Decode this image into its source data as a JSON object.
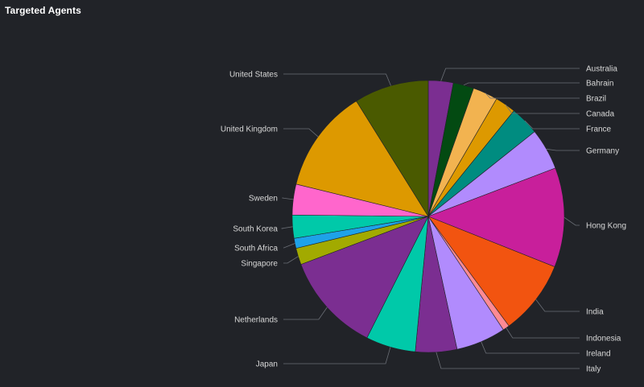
{
  "panel": {
    "title": "Targeted Agents"
  },
  "chart_data": {
    "type": "pie",
    "title": "Targeted Agents",
    "slices": [
      {
        "label": "Australia",
        "value": 3.0,
        "color": "#7b2e91"
      },
      {
        "label": "Bahrain",
        "value": 2.5,
        "color": "#034a12"
      },
      {
        "label": "Brazil",
        "value": 3.0,
        "color": "#f2b350"
      },
      {
        "label": "Canada",
        "value": 2.5,
        "color": "#dd9900"
      },
      {
        "label": "France",
        "value": 3.5,
        "color": "#008c80"
      },
      {
        "label": "Germany",
        "value": 5.0,
        "color": "#b18bfd"
      },
      {
        "label": "Hong Kong",
        "value": 12.0,
        "color": "#c81f9b"
      },
      {
        "label": "India",
        "value": 9.0,
        "color": "#f25410"
      },
      {
        "label": "Indonesia",
        "value": 0.8,
        "color": "#ff8a94"
      },
      {
        "label": "Ireland",
        "value": 6.0,
        "color": "#b18bfd"
      },
      {
        "label": "Italy",
        "value": 5.0,
        "color": "#7b2e91"
      },
      {
        "label": "Japan",
        "value": 6.0,
        "color": "#00c9a9"
      },
      {
        "label": "Netherlands",
        "value": 12.0,
        "color": "#7b2e91"
      },
      {
        "label": "Singapore",
        "value": 2.0,
        "color": "#a2aa00"
      },
      {
        "label": "South Africa",
        "value": 1.2,
        "color": "#1ea2e8"
      },
      {
        "label": "South Korea",
        "value": 2.8,
        "color": "#00c9a9"
      },
      {
        "label": "Sweden",
        "value": 3.7,
        "color": "#ff66cc"
      },
      {
        "label": "United Kingdom",
        "value": 12.5,
        "color": "#dd9900"
      },
      {
        "label": "United States",
        "value": 9.0,
        "color": "#4a5a00"
      }
    ]
  }
}
